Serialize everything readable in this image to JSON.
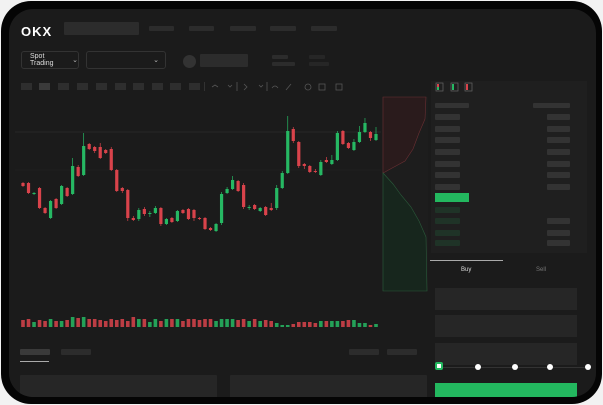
{
  "header": {
    "logo": "OKX"
  },
  "market": {
    "mode_label": "Spot Trading"
  },
  "order_form": {
    "tabs": [
      {
        "label": "Buy",
        "active": true
      },
      {
        "label": "Sell",
        "active": false
      }
    ],
    "leverage_slider": {
      "value": 0,
      "stops": 5
    }
  },
  "colors": {
    "up": "#26b863",
    "down": "#d9434b",
    "accent": "#23b85f",
    "background": "#1b1b1b"
  },
  "icons": {
    "orderbook_both": "orderbook-both-icon",
    "orderbook_bids": "orderbook-bids-icon",
    "orderbook_asks": "orderbook-asks-icon"
  },
  "chart_data": {
    "type": "candlestick",
    "candles": [
      [
        118,
        119,
        114,
        115
      ],
      [
        118,
        119,
        107,
        108
      ],
      [
        107,
        109,
        106,
        108
      ],
      [
        113,
        114,
        92,
        93
      ],
      [
        93,
        94,
        87,
        88
      ],
      [
        83,
        101,
        82,
        100
      ],
      [
        102,
        103,
        92,
        93
      ],
      [
        97,
        116,
        96,
        115
      ],
      [
        113,
        114,
        104,
        105
      ],
      [
        107,
        143,
        106,
        135
      ],
      [
        134,
        136,
        124,
        125
      ],
      [
        126,
        168,
        125,
        155
      ],
      [
        157,
        158,
        151,
        152
      ],
      [
        154,
        155,
        148,
        150
      ],
      [
        154,
        158,
        142,
        143
      ],
      [
        151,
        152,
        147,
        148
      ],
      [
        152,
        154,
        130,
        131
      ],
      [
        131,
        132,
        109,
        110
      ],
      [
        113,
        114,
        108,
        110
      ],
      [
        111,
        112,
        80,
        83
      ],
      [
        83,
        85,
        80,
        81
      ],
      [
        82,
        93,
        80,
        91
      ],
      [
        92,
        94,
        85,
        87
      ],
      [
        87,
        90,
        84,
        88
      ],
      [
        88,
        95,
        87,
        93
      ],
      [
        93,
        94,
        75,
        77
      ],
      [
        77,
        83,
        76,
        82
      ],
      [
        83,
        84,
        78,
        79
      ],
      [
        80,
        91,
        79,
        90
      ],
      [
        91,
        92,
        87,
        88
      ],
      [
        92,
        93,
        81,
        82
      ],
      [
        91,
        92,
        80,
        83
      ],
      [
        83,
        84,
        81,
        82
      ],
      [
        83,
        84,
        71,
        72
      ],
      [
        73,
        74,
        70,
        71
      ],
      [
        70,
        78,
        69,
        77
      ],
      [
        78,
        109,
        76,
        107
      ],
      [
        108,
        114,
        107,
        112
      ],
      [
        112,
        125,
        111,
        121
      ],
      [
        120,
        121,
        109,
        110
      ],
      [
        116,
        118,
        92,
        94
      ],
      [
        93,
        96,
        91,
        94
      ],
      [
        96,
        97,
        91,
        92
      ],
      [
        90,
        94,
        89,
        93
      ],
      [
        94,
        95,
        85,
        86
      ],
      [
        93,
        98,
        90,
        91
      ],
      [
        93,
        116,
        91,
        113
      ],
      [
        113,
        130,
        112,
        128
      ],
      [
        128,
        185,
        127,
        170
      ],
      [
        172,
        174,
        158,
        160
      ],
      [
        159,
        160,
        133,
        135
      ],
      [
        137,
        138,
        132,
        135
      ],
      [
        135,
        136,
        128,
        129
      ],
      [
        130,
        132,
        128,
        129
      ],
      [
        126,
        141,
        125,
        139
      ],
      [
        141,
        144,
        138,
        139
      ],
      [
        137,
        146,
        136,
        141
      ],
      [
        141,
        170,
        140,
        168
      ],
      [
        170,
        171,
        156,
        157
      ],
      [
        158,
        159,
        152,
        153
      ],
      [
        151,
        162,
        150,
        159
      ],
      [
        159,
        175,
        158,
        169
      ],
      [
        169,
        183,
        168,
        178
      ],
      [
        169,
        170,
        160,
        163
      ],
      [
        161,
        174,
        160,
        167
      ]
    ],
    "volumes": [
      7,
      8,
      5,
      7,
      6,
      8,
      6,
      6,
      7,
      10,
      9,
      10,
      8,
      8,
      7,
      6,
      8,
      7,
      8,
      6,
      10,
      8,
      8,
      5,
      8,
      6,
      8,
      8,
      8,
      6,
      8,
      8,
      7,
      8,
      8,
      6,
      8,
      8,
      8,
      7,
      8,
      6,
      8,
      6,
      7,
      6,
      4,
      2,
      2,
      3,
      5,
      5,
      5,
      4,
      6,
      6,
      6,
      6,
      6,
      7,
      7,
      4,
      4,
      2,
      3
    ],
    "depth": {
      "asks_side": "top",
      "bids_side": "bottom"
    }
  }
}
